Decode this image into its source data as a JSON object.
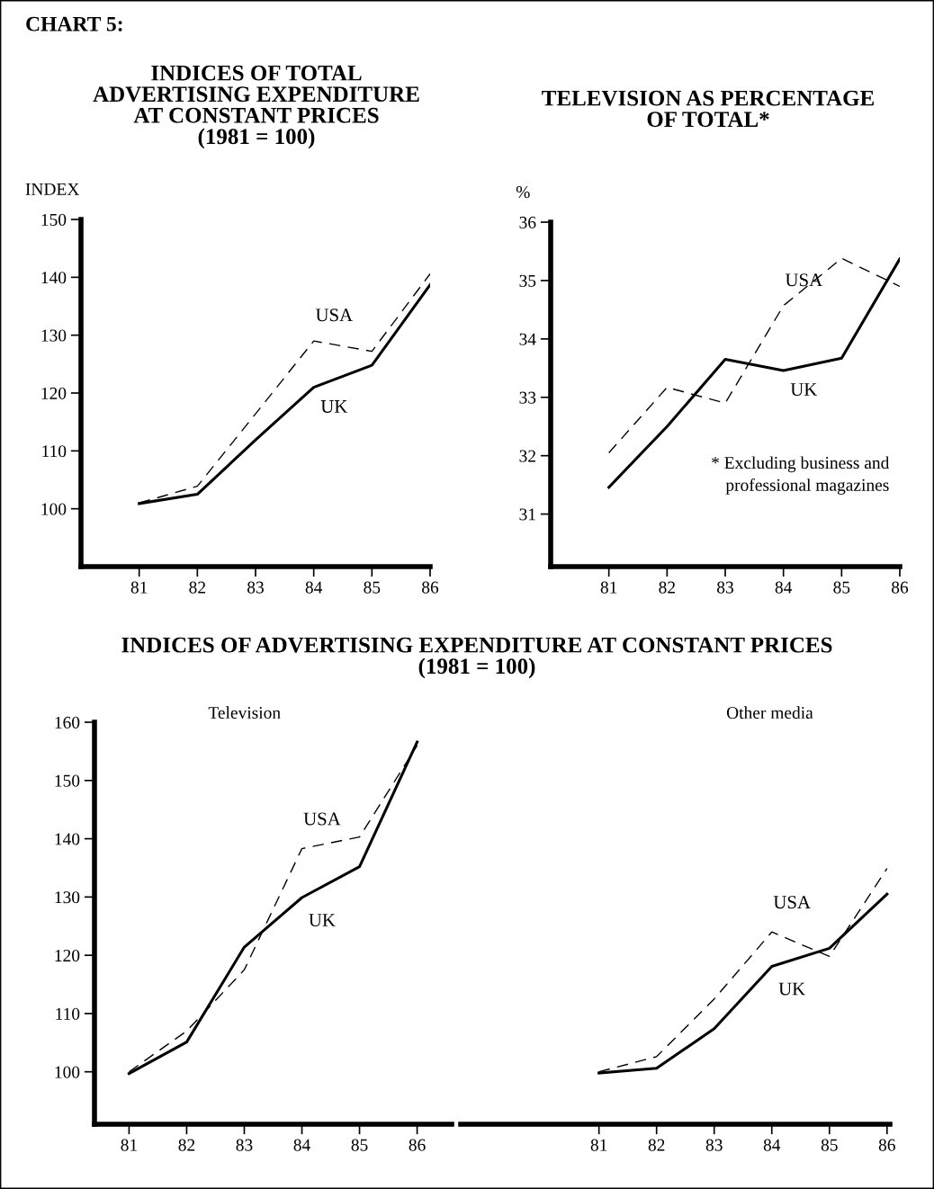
{
  "chart_data": [
    {
      "type": "line",
      "title": "INDICES OF TOTAL\nADVERTISING EXPENDITURE\nAT CONSTANT PRICES\n(1981 = 100)",
      "ylabel": "INDEX",
      "annotations": [
        "CHART 5:"
      ],
      "x": [
        81,
        82,
        83,
        84,
        85,
        86
      ],
      "xlim": [
        80,
        86
      ],
      "xticks": [
        81,
        82,
        83,
        84,
        85,
        86
      ],
      "ylim": [
        90,
        150
      ],
      "yticks": [
        100,
        110,
        120,
        130,
        140,
        150
      ],
      "grid": false,
      "legend": false,
      "marker": "none",
      "series": [
        {
          "name": "USA",
          "color": "#000000",
          "line_style": "dashed",
          "values": [
            101,
            103.9,
            116.4,
            129.0,
            127.2,
            140.6
          ]
        },
        {
          "name": "UK",
          "color": "#000000",
          "line_style": "solid",
          "values": [
            100.9,
            102.5,
            111.9,
            121.0,
            124.8,
            138.7
          ]
        }
      ]
    },
    {
      "type": "line",
      "title": "TELEVISION AS PERCENTAGE\nOF TOTAL*",
      "ylabel": "%",
      "annotations": [
        "* Excluding business and\nprofessional magazines"
      ],
      "x": [
        81,
        82,
        83,
        84,
        85,
        86
      ],
      "xlim": [
        80,
        86
      ],
      "xticks": [
        81,
        82,
        83,
        84,
        85,
        86
      ],
      "ylim": [
        30.1,
        36
      ],
      "yticks": [
        31,
        32,
        33,
        34,
        35,
        36
      ],
      "grid": false,
      "legend": false,
      "marker": "none",
      "series": [
        {
          "name": "USA",
          "color": "#000000",
          "line_style": "dashed",
          "values": [
            32.05,
            33.17,
            32.9,
            34.57,
            35.38,
            34.9
          ]
        },
        {
          "name": "UK",
          "color": "#000000",
          "line_style": "solid",
          "values": [
            31.46,
            32.5,
            33.65,
            33.46,
            33.67,
            35.37
          ]
        }
      ]
    },
    {
      "type": "line",
      "title": "INDICES OF ADVERTISING EXPENDITURE AT CONSTANT PRICES\n(1981 = 100)",
      "subtitle": "Television",
      "x": [
        81,
        82,
        83,
        84,
        85,
        86
      ],
      "xlim": [
        80.4,
        86.6
      ],
      "xticks": [
        81,
        82,
        83,
        84,
        85,
        86
      ],
      "ylim": [
        91,
        160
      ],
      "yticks": [
        100,
        110,
        120,
        130,
        140,
        150,
        160
      ],
      "grid": false,
      "legend": false,
      "marker": "none",
      "series": [
        {
          "name": "USA",
          "color": "#000000",
          "line_style": "dashed",
          "values": [
            100,
            107,
            117.5,
            138.3,
            140.3,
            156
          ]
        },
        {
          "name": "UK",
          "color": "#000000",
          "line_style": "solid",
          "values": [
            99.7,
            105.1,
            121.4,
            129.9,
            135.2,
            156.6
          ]
        }
      ]
    },
    {
      "type": "line",
      "subtitle": "Other media",
      "tick_labels": "x",
      "x": [
        81,
        82,
        83,
        84,
        85,
        86
      ],
      "xlim": [
        78.6,
        86.05
      ],
      "xticks": [
        81,
        82,
        83,
        84,
        85,
        86
      ],
      "ylim": [
        91,
        160
      ],
      "grid": false,
      "legend": false,
      "marker": "none",
      "series": [
        {
          "name": "USA",
          "color": "#000000",
          "line_style": "dashed",
          "values": [
            100,
            102.6,
            112.5,
            124.0,
            119.8,
            134.9
          ]
        },
        {
          "name": "UK",
          "color": "#000000",
          "line_style": "solid",
          "values": [
            99.8,
            100.6,
            107.4,
            118.1,
            121.2,
            130.5
          ]
        }
      ]
    }
  ]
}
